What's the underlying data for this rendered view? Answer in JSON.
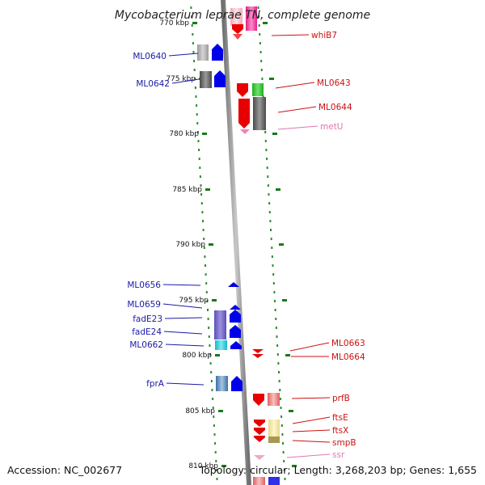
{
  "title": "Mycobacterium leprae TN, complete genome",
  "footer": {
    "accession": "Accession: NC_002677",
    "topology": "Topology: circular; Length: 3,268,203 bp; Genes: 1,655"
  },
  "colors": {
    "left_label": "#1a1aa8",
    "right_label": "#cc1111",
    "rna_label": "#e077b0",
    "dots": "#2d8c2d",
    "axis": "#8c8c8c"
  },
  "scale_labels": [
    "770 kbp",
    "775 kbp",
    "780 kbp",
    "785 kbp",
    "790 kbp",
    "795 kbp",
    "800 kbp",
    "805 kbp",
    "810 kbp"
  ],
  "left_genes": [
    {
      "label": "ML0640"
    },
    {
      "label": "ML0642"
    },
    {
      "label": "ML0656"
    },
    {
      "label": "ML0659"
    },
    {
      "label": "fadE23"
    },
    {
      "label": "fadE24"
    },
    {
      "label": "ML0662"
    },
    {
      "label": "fprA"
    }
  ],
  "right_genes": [
    {
      "label": "whiB7",
      "type": "gene"
    },
    {
      "label": "ML0643",
      "type": "gene"
    },
    {
      "label": "ML0644",
      "type": "gene"
    },
    {
      "label": "metU",
      "type": "rna"
    },
    {
      "label": "ML0663",
      "type": "gene"
    },
    {
      "label": "ML0664",
      "type": "gene"
    },
    {
      "label": "prfB",
      "type": "gene"
    },
    {
      "label": "ftsE",
      "type": "gene"
    },
    {
      "label": "ftsX",
      "type": "gene"
    },
    {
      "label": "smpB",
      "type": "gene"
    },
    {
      "label": "ssr",
      "type": "rna"
    }
  ]
}
